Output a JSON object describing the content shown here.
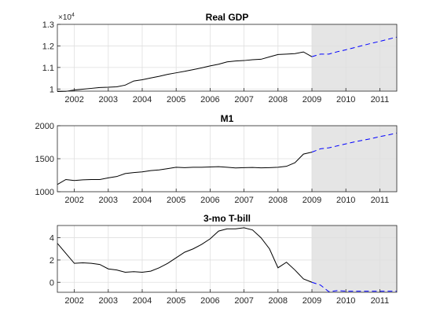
{
  "colors": {
    "history": "#000000",
    "forecast": "#0000ff",
    "shade": "#e5e5e5",
    "grid": "#dfdfdf",
    "axis": "#262626"
  },
  "chart_data": [
    {
      "type": "line",
      "title": "Real GDP",
      "xlim": [
        2001.5,
        2011.5
      ],
      "ylim": [
        9900,
        13000
      ],
      "yticks": [
        10000,
        11000,
        12000,
        13000
      ],
      "ytick_labels": [
        "1",
        "1.1",
        "1.2",
        "1.3"
      ],
      "yexponent": "×10",
      "yexponent_power": "4",
      "xticks": [
        2002,
        2003,
        2004,
        2005,
        2006,
        2007,
        2008,
        2009,
        2010,
        2011
      ],
      "xtick_labels": [
        "2002",
        "2003",
        "2004",
        "2005",
        "2006",
        "2007",
        "2008",
        "2009",
        "2010",
        "2011"
      ],
      "forecast_region": [
        2009,
        2011.5
      ],
      "grid": true,
      "series": [
        {
          "style": "solid",
          "x": [
            2001.5,
            2001.75,
            2002,
            2002.25,
            2002.5,
            2002.75,
            2003,
            2003.25,
            2003.5,
            2003.75,
            2004,
            2004.25,
            2004.5,
            2004.75,
            2005,
            2005.25,
            2005.5,
            2005.75,
            2006,
            2006.25,
            2006.5,
            2006.75,
            2007,
            2007.25,
            2007.5,
            2007.75,
            2008,
            2008.25,
            2008.5,
            2008.75,
            2009
          ],
          "y": [
            9880,
            9890,
            9950,
            9990,
            10030,
            10070,
            10080,
            10100,
            10180,
            10370,
            10430,
            10510,
            10590,
            10680,
            10750,
            10820,
            10900,
            10980,
            11070,
            11150,
            11260,
            11300,
            11320,
            11360,
            11380,
            11490,
            11600,
            11620,
            11640,
            11720,
            11500
          ]
        },
        {
          "style": "dashed",
          "x": [
            2009,
            2009.25,
            2009.5,
            2009.75,
            2010,
            2010.25,
            2010.5,
            2010.75,
            2011,
            2011.25,
            2011.5
          ],
          "y": [
            11500,
            11620,
            11620,
            11730,
            11820,
            11920,
            12020,
            12120,
            12210,
            12310,
            12410
          ]
        }
      ]
    },
    {
      "type": "line",
      "title": "M1",
      "xlim": [
        2001.5,
        2011.5
      ],
      "ylim": [
        1000,
        2000
      ],
      "yticks": [
        1000,
        1500,
        2000
      ],
      "ytick_labels": [
        "1000",
        "1500",
        "2000"
      ],
      "xticks": [
        2002,
        2003,
        2004,
        2005,
        2006,
        2007,
        2008,
        2009,
        2010,
        2011
      ],
      "xtick_labels": [
        "2002",
        "2003",
        "2004",
        "2005",
        "2006",
        "2007",
        "2008",
        "2009",
        "2010",
        "2011"
      ],
      "forecast_region": [
        2009,
        2011.5
      ],
      "grid": true,
      "series": [
        {
          "style": "solid",
          "x": [
            2001.5,
            2001.75,
            2002,
            2002.25,
            2002.5,
            2002.75,
            2003,
            2003.25,
            2003.5,
            2003.75,
            2004,
            2004.25,
            2004.5,
            2004.75,
            2005,
            2005.25,
            2005.5,
            2005.75,
            2006,
            2006.25,
            2006.5,
            2006.75,
            2007,
            2007.25,
            2007.5,
            2007.75,
            2008,
            2008.25,
            2008.5,
            2008.75,
            2009
          ],
          "y": [
            1110,
            1185,
            1170,
            1180,
            1185,
            1185,
            1210,
            1230,
            1275,
            1290,
            1300,
            1320,
            1330,
            1350,
            1370,
            1365,
            1370,
            1370,
            1375,
            1380,
            1370,
            1360,
            1365,
            1368,
            1362,
            1365,
            1370,
            1385,
            1440,
            1570,
            1600
          ]
        },
        {
          "style": "dashed",
          "x": [
            2009,
            2009.25,
            2009.5,
            2009.75,
            2010,
            2010.25,
            2010.5,
            2010.75,
            2011,
            2011.25,
            2011.5
          ],
          "y": [
            1600,
            1650,
            1665,
            1695,
            1725,
            1755,
            1780,
            1805,
            1835,
            1860,
            1890
          ]
        }
      ]
    },
    {
      "type": "line",
      "title": "3-mo T-bill",
      "xlim": [
        2001.5,
        2011.5
      ],
      "ylim": [
        -0.9,
        5.1
      ],
      "yticks": [
        0,
        2,
        4
      ],
      "ytick_labels": [
        "0",
        "2",
        "4"
      ],
      "xticks": [
        2002,
        2003,
        2004,
        2005,
        2006,
        2007,
        2008,
        2009,
        2010,
        2011
      ],
      "xtick_labels": [
        "2002",
        "2003",
        "2004",
        "2005",
        "2006",
        "2007",
        "2008",
        "2009",
        "2010",
        "2011"
      ],
      "forecast_region": [
        2009,
        2011.5
      ],
      "grid": true,
      "series": [
        {
          "style": "solid",
          "x": [
            2001.5,
            2001.75,
            2002,
            2002.25,
            2002.5,
            2002.75,
            2003,
            2003.25,
            2003.5,
            2003.75,
            2004,
            2004.25,
            2004.5,
            2004.75,
            2005,
            2005.25,
            2005.5,
            2005.75,
            2006,
            2006.25,
            2006.5,
            2006.75,
            2007,
            2007.25,
            2007.5,
            2007.75,
            2008,
            2008.25,
            2008.5,
            2008.75,
            2009
          ],
          "y": [
            3.5,
            2.6,
            1.7,
            1.75,
            1.7,
            1.6,
            1.2,
            1.1,
            0.9,
            0.95,
            0.9,
            1.0,
            1.3,
            1.7,
            2.2,
            2.7,
            3.0,
            3.4,
            3.9,
            4.6,
            4.8,
            4.8,
            4.9,
            4.7,
            4.0,
            3.0,
            1.3,
            1.8,
            1.1,
            0.3,
            0.0
          ]
        },
        {
          "style": "dashed",
          "x": [
            2009,
            2009.25,
            2009.5,
            2009.75,
            2010,
            2010.25,
            2010.5,
            2010.75,
            2011,
            2011.25,
            2011.5
          ],
          "y": [
            0.0,
            -0.25,
            -0.85,
            -0.75,
            -0.8,
            -0.8,
            -0.8,
            -0.8,
            -0.8,
            -0.8,
            -0.8
          ]
        }
      ]
    }
  ]
}
